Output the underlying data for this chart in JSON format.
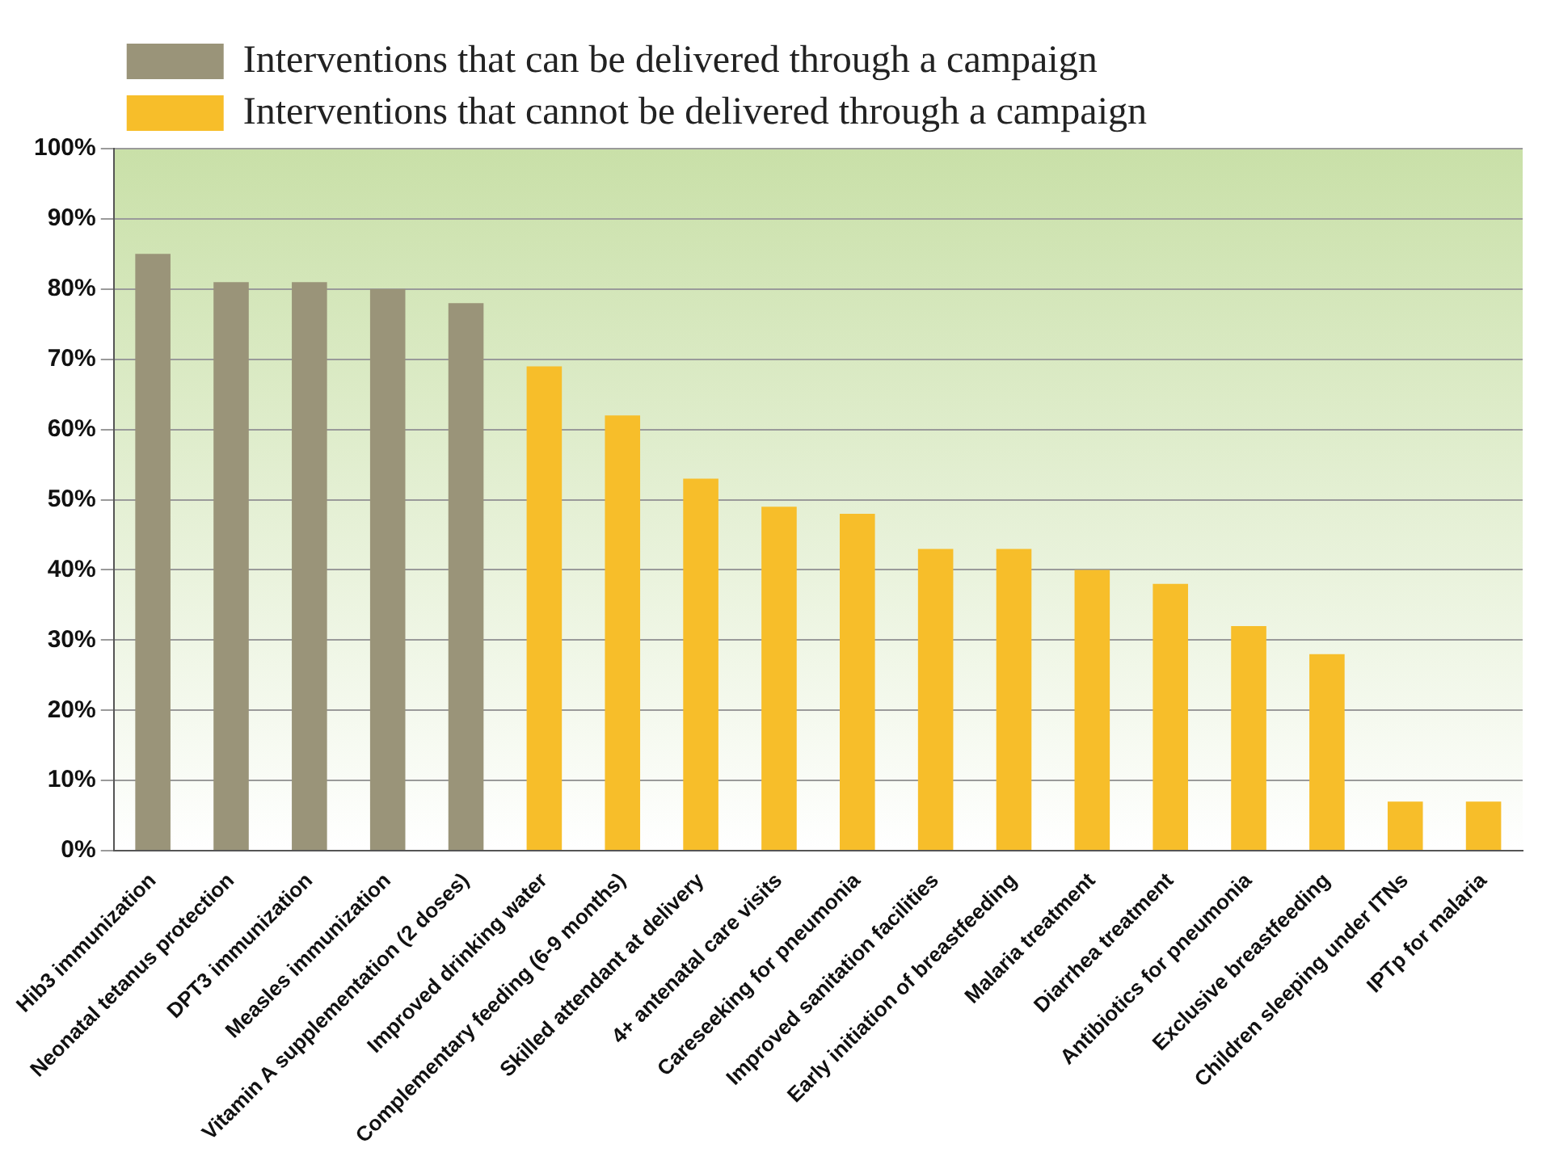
{
  "chart_data": {
    "type": "bar",
    "categories": [
      "Hib3 immunization",
      "Neonatal tetanus protection",
      "DPT3 immunization",
      "Measles immunization",
      "Vitamin A supplementation (2 doses)",
      "Improved drinking water",
      "Complementary feeding (6-9 months)",
      "Skilled attendant at delivery",
      "4+ antenatal care visits",
      "Careseeking for pneumonia",
      "Improved sanitation facilities",
      "Early initiation of breastfeeding",
      "Malaria treatment",
      "Diarrhea treatment",
      "Antibiotics for pneumonia",
      "Exclusive breastfeeding",
      "Children sleeping under ITNs",
      "IPTp for malaria"
    ],
    "series": [
      {
        "name": "Interventions that can be delivered through a campaign",
        "color": "#9a9479",
        "values": [
          85,
          81,
          81,
          80,
          78,
          null,
          null,
          null,
          null,
          null,
          null,
          null,
          null,
          null,
          null,
          null,
          null,
          null
        ]
      },
      {
        "name": "Interventions that cannot be delivered through a campaign",
        "color": "#f7be2a",
        "values": [
          null,
          null,
          null,
          null,
          null,
          69,
          62,
          53,
          49,
          48,
          43,
          43,
          40,
          38,
          32,
          28,
          7,
          7
        ]
      }
    ],
    "ylim": [
      0,
      100
    ],
    "yticks": [
      {
        "value": 0,
        "label": "0%"
      },
      {
        "value": 10,
        "label": "10%"
      },
      {
        "value": 20,
        "label": "20%"
      },
      {
        "value": 30,
        "label": "30%"
      },
      {
        "value": 40,
        "label": "40%"
      },
      {
        "value": 50,
        "label": "50%"
      },
      {
        "value": 60,
        "label": "60%"
      },
      {
        "value": 70,
        "label": "70%"
      },
      {
        "value": 80,
        "label": "80%"
      },
      {
        "value": 90,
        "label": "90%"
      },
      {
        "value": 100,
        "label": "100%"
      }
    ],
    "grid": "y",
    "legend": "top left"
  }
}
